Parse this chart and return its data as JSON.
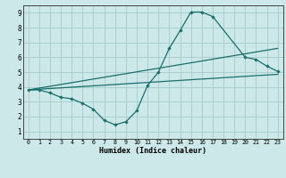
{
  "xlabel": "Humidex (Indice chaleur)",
  "bg_color": "#cce8e8",
  "line_color": "#1a6e6e",
  "grid_color": "#aacece",
  "xlim": [
    -0.5,
    23.5
  ],
  "ylim": [
    0.5,
    9.5
  ],
  "xticks": [
    0,
    1,
    2,
    3,
    4,
    5,
    6,
    7,
    8,
    9,
    10,
    11,
    12,
    13,
    14,
    15,
    16,
    17,
    18,
    19,
    20,
    21,
    22,
    23
  ],
  "yticks": [
    1,
    2,
    3,
    4,
    5,
    6,
    7,
    8,
    9
  ],
  "line1_x": [
    0,
    1,
    2,
    3,
    4,
    5,
    6,
    7,
    8,
    9,
    10,
    11,
    12,
    13,
    14,
    15,
    16,
    17,
    20,
    21,
    22,
    23
  ],
  "line1_y": [
    3.8,
    3.8,
    3.6,
    3.3,
    3.2,
    2.9,
    2.5,
    1.75,
    1.45,
    1.65,
    2.4,
    4.1,
    5.0,
    6.6,
    7.8,
    9.05,
    9.05,
    8.75,
    6.0,
    5.85,
    5.4,
    5.05
  ],
  "line2_x": [
    0,
    23
  ],
  "line2_y": [
    3.8,
    4.85
  ],
  "line3_x": [
    0,
    23
  ],
  "line3_y": [
    3.8,
    6.6
  ],
  "figsize": [
    3.2,
    2.0
  ],
  "dpi": 100
}
